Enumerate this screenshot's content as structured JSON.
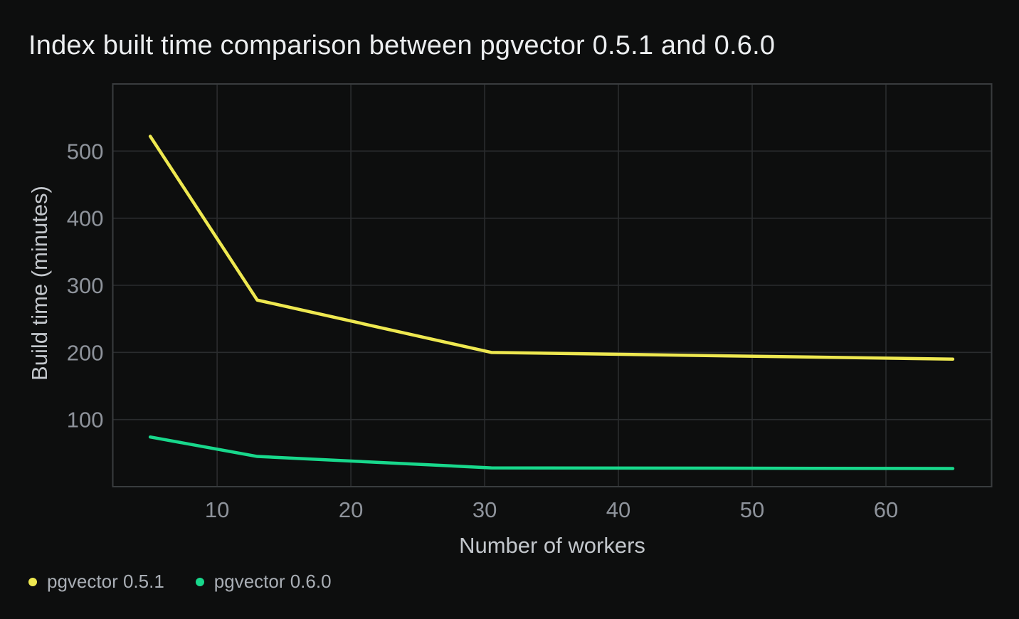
{
  "page": {
    "background": "#0d0e0e"
  },
  "chart_data": {
    "type": "line",
    "title": "Index built time comparison between pgvector 0.5.1 and 0.6.0",
    "xlabel": "Number of workers",
    "ylabel": "Build time (minutes)",
    "x": [
      5,
      13,
      30.5,
      65
    ],
    "series": [
      {
        "name": "pgvector 0.5.1",
        "color": "#eee850",
        "values": [
          522,
          278,
          200,
          190
        ]
      },
      {
        "name": "pgvector 0.6.0",
        "color": "#18d88c",
        "values": [
          74,
          45,
          28,
          27
        ]
      }
    ],
    "xlim": [
      2.2,
      67.9
    ],
    "ylim": [
      0,
      600
    ],
    "x_ticks": [
      10,
      20,
      30,
      40,
      50,
      60
    ],
    "y_ticks": [
      100,
      200,
      300,
      400,
      500
    ],
    "grid": true,
    "legend_position": "bottom-left"
  },
  "colors": {
    "background": "#0d0e0e",
    "title_text": "#eceef0",
    "tick_label": "#8e939b",
    "axis_title": "#c3c7cc",
    "legend_text": "#a9aeb5",
    "gridline": "#2a2c2e",
    "plot_border": "#393c3e",
    "series_yellow": "#eee850",
    "series_green": "#18d88c"
  }
}
